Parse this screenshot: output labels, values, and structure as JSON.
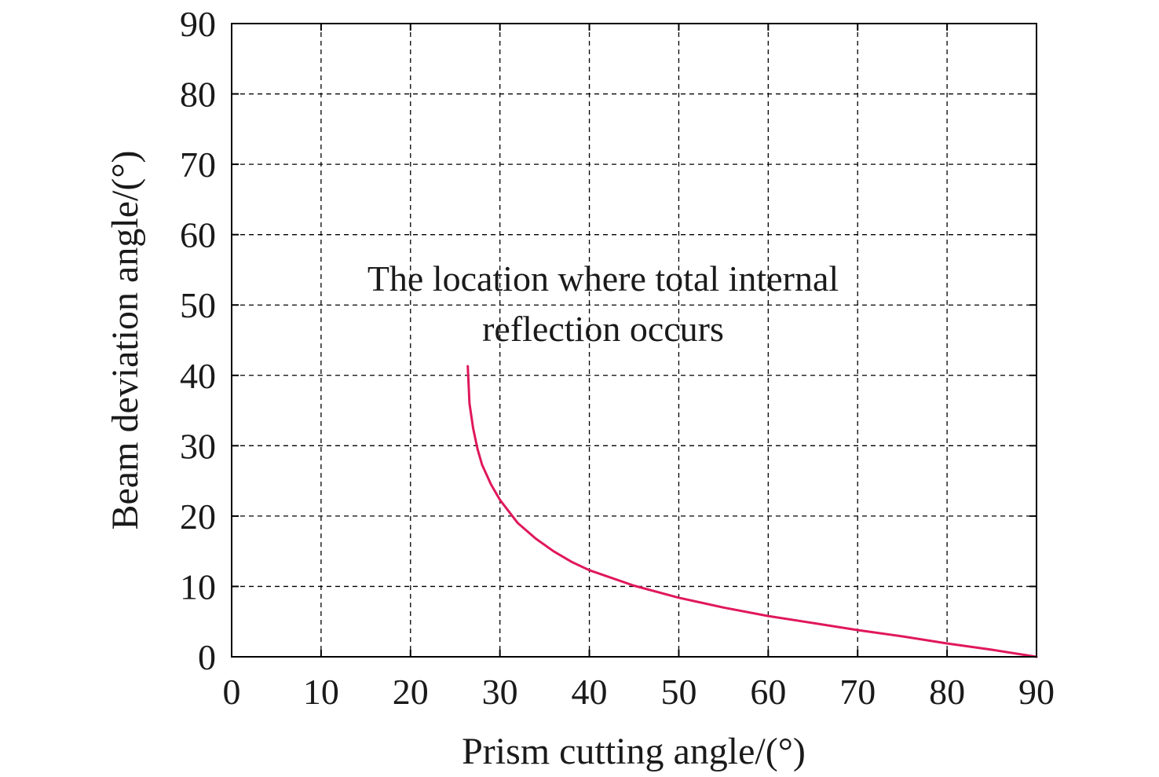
{
  "chart_data": {
    "type": "line",
    "xlabel": "Prism cutting angle/(°)",
    "ylabel": "Beam deviation angle/(°)",
    "annotation": [
      "The location where total internal",
      "reflection occurs"
    ],
    "xlim": [
      0,
      90
    ],
    "ylim": [
      0,
      90
    ],
    "xticks": [
      0,
      10,
      20,
      30,
      40,
      50,
      60,
      70,
      80,
      90
    ],
    "yticks": [
      0,
      10,
      20,
      30,
      40,
      50,
      60,
      70,
      80,
      90
    ],
    "grid": true,
    "series": [
      {
        "color": "#e0185a",
        "x": [
          26.4,
          26.6,
          27.0,
          27.5,
          28.0,
          29.0,
          30.0,
          32.0,
          34.0,
          36.0,
          38.0,
          40.0,
          45.0,
          50.0,
          55.0,
          60.0,
          65.0,
          70.0,
          75.0,
          80.0,
          85.0,
          90.0
        ],
        "y": [
          41.3,
          36.0,
          32.5,
          29.5,
          27.3,
          24.5,
          22.3,
          19.0,
          16.8,
          15.0,
          13.5,
          12.3,
          10.1,
          8.4,
          7.0,
          5.8,
          4.8,
          3.8,
          2.9,
          1.9,
          1.0,
          0.0
        ]
      }
    ]
  }
}
